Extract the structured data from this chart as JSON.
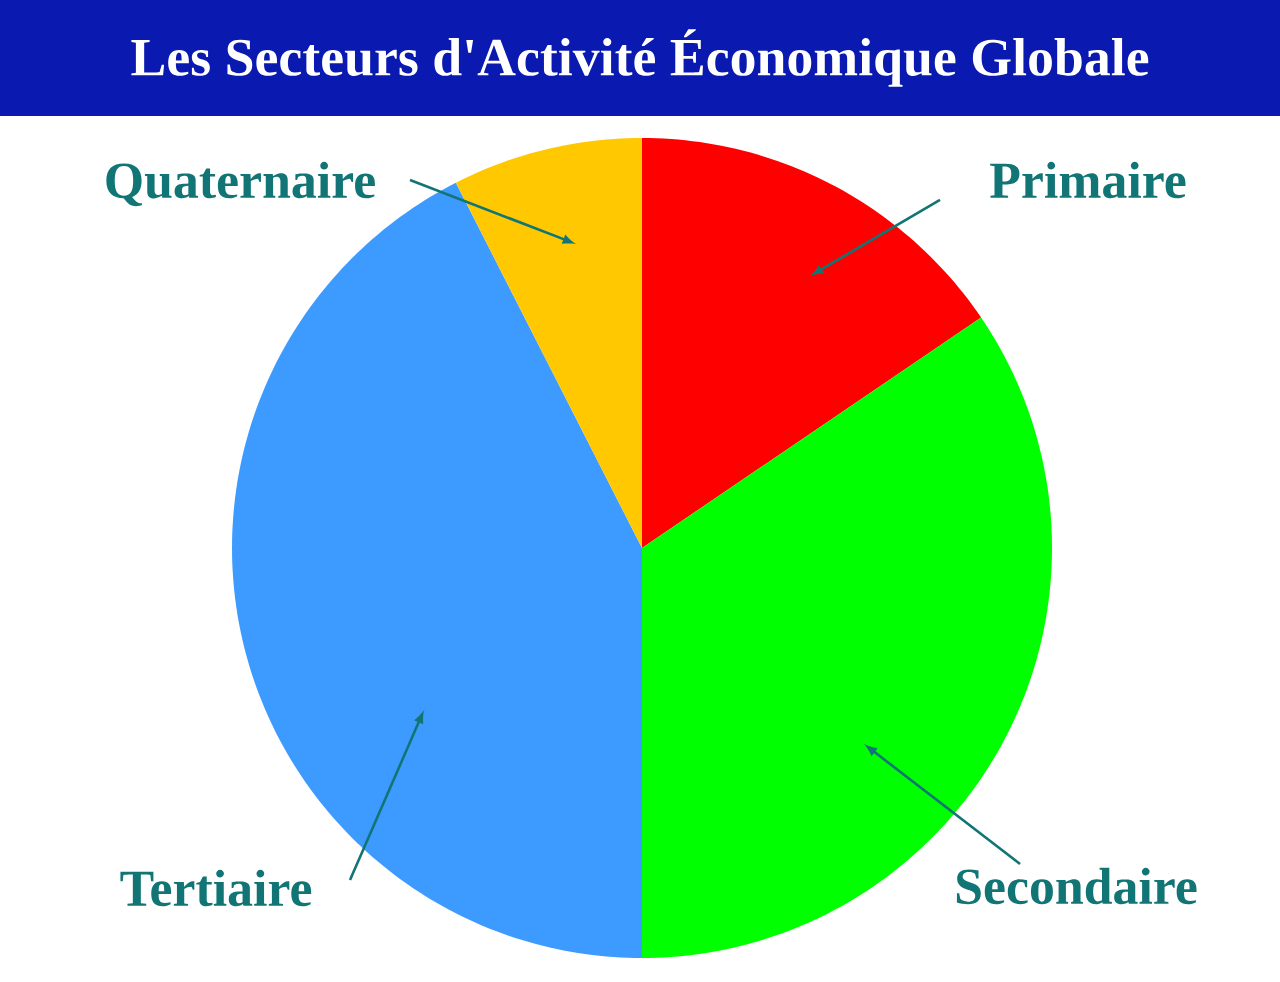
{
  "chart_data": {
    "type": "pie",
    "title": "Les Secteurs d'Activité Économique Globale",
    "categories": [
      "Primaire",
      "Secondaire",
      "Tertiaire",
      "Quaternaire"
    ],
    "values": [
      15.5,
      34.5,
      42.5,
      7.5
    ],
    "colors": [
      "#ff0000",
      "#00ff00",
      "#3d9bff",
      "#ffc800"
    ]
  }
}
